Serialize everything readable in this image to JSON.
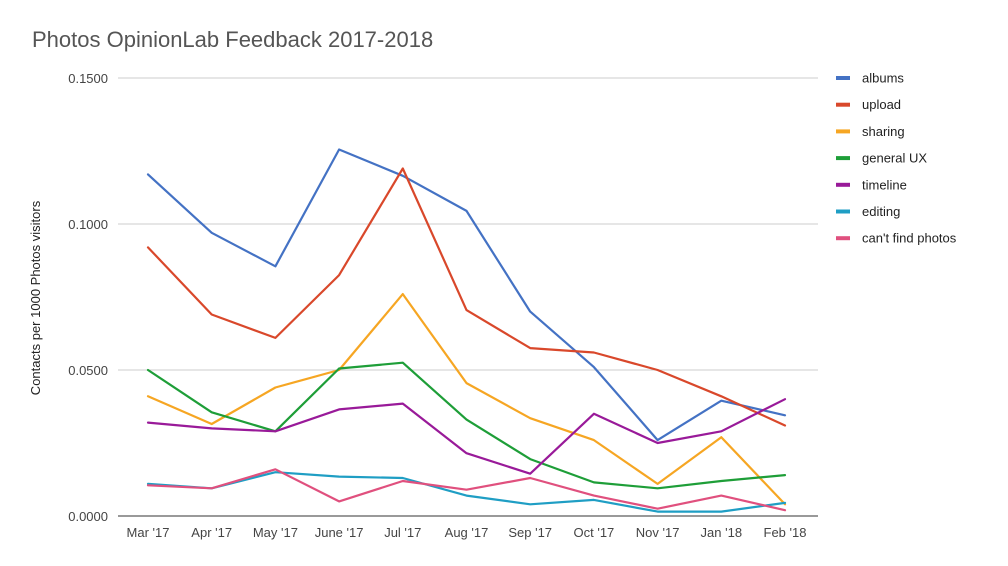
{
  "chart_data": {
    "type": "line",
    "title": "Photos OpinionLab Feedback 2017-2018",
    "xlabel": "",
    "ylabel": "Contacts per 1000 Photos visitors",
    "ylim": [
      0,
      0.15
    ],
    "yticks": [
      {
        "value": 0.0,
        "label": "0.0000"
      },
      {
        "value": 0.05,
        "label": "0.0500"
      },
      {
        "value": 0.1,
        "label": "0.1000"
      },
      {
        "value": 0.15,
        "label": "0.1500"
      }
    ],
    "categories": [
      "Mar '17",
      "Apr '17",
      "May '17",
      "June '17",
      "Jul '17",
      "Aug '17",
      "Sep '17",
      "Oct '17",
      "Nov '17",
      "Jan '18",
      "Feb '18"
    ],
    "legend_position": "right",
    "series": [
      {
        "name": "albums",
        "color": "#4472c4",
        "values": [
          0.117,
          0.097,
          0.0855,
          0.1255,
          0.1165,
          0.1045,
          0.07,
          0.051,
          0.026,
          0.0395,
          0.0345
        ]
      },
      {
        "name": "upload",
        "color": "#d9482b",
        "values": [
          0.092,
          0.069,
          0.061,
          0.0825,
          0.119,
          0.0705,
          0.0575,
          0.056,
          0.05,
          0.041,
          0.031
        ]
      },
      {
        "name": "sharing",
        "color": "#f6a623",
        "values": [
          0.041,
          0.0315,
          0.044,
          0.05,
          0.076,
          0.0455,
          0.0335,
          0.026,
          0.011,
          0.027,
          0.004
        ]
      },
      {
        "name": "general UX",
        "color": "#1e9e38",
        "values": [
          0.05,
          0.0355,
          0.029,
          0.0505,
          0.0525,
          0.033,
          0.0195,
          0.0115,
          0.0095,
          0.012,
          0.014
        ]
      },
      {
        "name": "timeline",
        "color": "#991a99",
        "values": [
          0.032,
          0.03,
          0.029,
          0.0365,
          0.0385,
          0.0215,
          0.0145,
          0.035,
          0.025,
          0.029,
          0.04
        ]
      },
      {
        "name": "editing",
        "color": "#1f9ec4",
        "values": [
          0.011,
          0.0095,
          0.015,
          0.0135,
          0.013,
          0.007,
          0.004,
          0.0055,
          0.0015,
          0.0015,
          0.0045
        ]
      },
      {
        "name": "can't find photos",
        "color": "#e0507e",
        "values": [
          0.0105,
          0.0095,
          0.016,
          0.005,
          0.012,
          0.009,
          0.013,
          0.007,
          0.0025,
          0.007,
          0.002
        ]
      }
    ]
  }
}
